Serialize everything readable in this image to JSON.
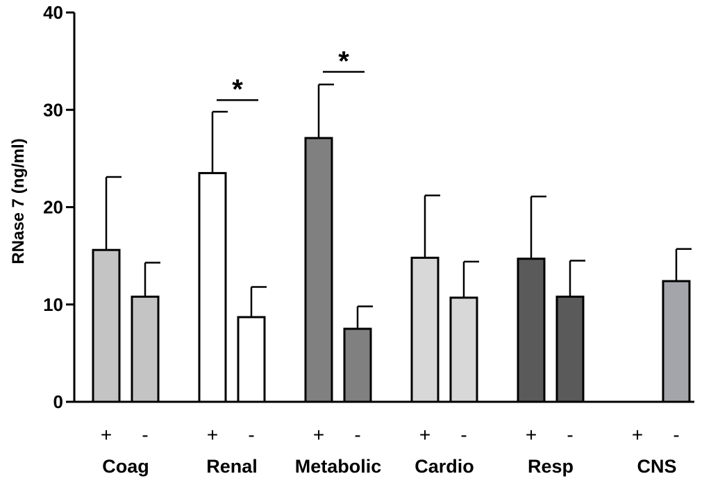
{
  "chart_data": {
    "type": "bar",
    "title": "",
    "xlabel": "",
    "ylabel": "RNase 7 (ng/ml)",
    "ylim": [
      0,
      40
    ],
    "yticks": [
      "0",
      "10",
      "20",
      "30",
      "40"
    ],
    "groups": [
      {
        "label": "Coag",
        "color": "#c4c4c4",
        "bars": [
          {
            "sign": "+",
            "value": 15.6,
            "err": 7.5
          },
          {
            "sign": "-",
            "value": 10.8,
            "err": 3.5
          }
        ]
      },
      {
        "label": "Renal",
        "color": "#ffffff",
        "bars": [
          {
            "sign": "+",
            "value": 23.5,
            "err": 6.3
          },
          {
            "sign": "-",
            "value": 8.7,
            "err": 3.1
          }
        ]
      },
      {
        "label": "Metabolic",
        "color": "#808080",
        "bars": [
          {
            "sign": "+",
            "value": 27.1,
            "err": 5.5
          },
          {
            "sign": "-",
            "value": 7.5,
            "err": 2.3
          }
        ]
      },
      {
        "label": "Cardio",
        "color": "#d8d8d8",
        "bars": [
          {
            "sign": "+",
            "value": 14.8,
            "err": 6.4
          },
          {
            "sign": "-",
            "value": 10.7,
            "err": 3.7
          }
        ]
      },
      {
        "label": "Resp",
        "color": "#5a5a5a",
        "bars": [
          {
            "sign": "+",
            "value": 14.7,
            "err": 6.4
          },
          {
            "sign": "-",
            "value": 10.8,
            "err": 3.7
          }
        ]
      },
      {
        "label": "CNS",
        "color": "#a4a4ab",
        "bars": [
          {
            "sign": "+",
            "value": null,
            "err": null
          },
          {
            "sign": "-",
            "value": 12.4,
            "err": 3.3
          }
        ]
      }
    ],
    "significance": [
      {
        "group": "Renal",
        "label": "*",
        "value": 31.0
      },
      {
        "group": "Metabolic",
        "label": "*",
        "value": 33.9
      }
    ]
  }
}
